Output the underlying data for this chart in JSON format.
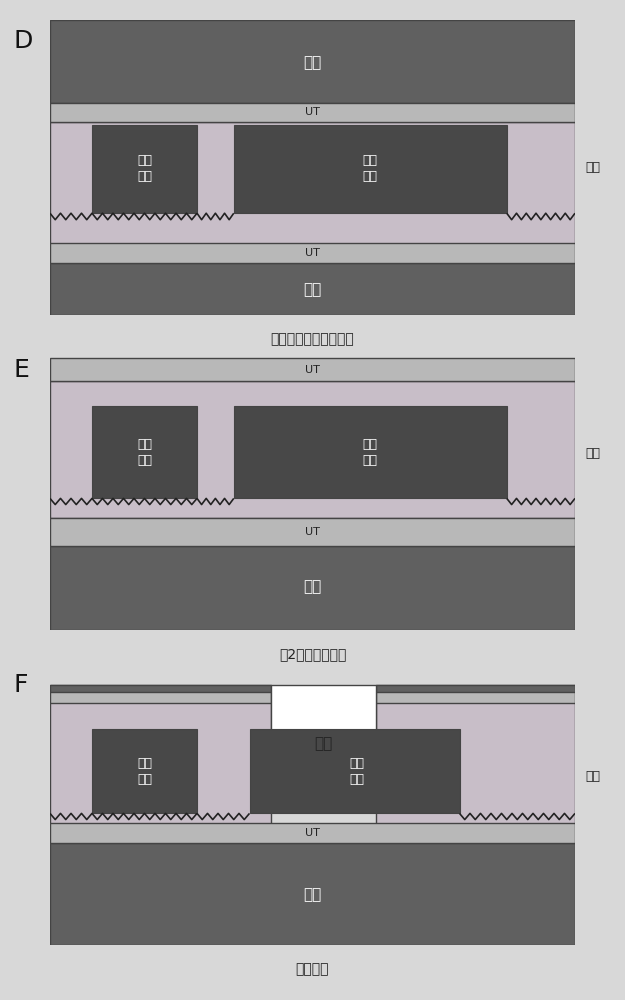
{
  "bg_color": "#d8d8d8",
  "carrier_color": "#606060",
  "ut_layer_color": "#b8b8b8",
  "ut_thin_color": "#c0bcc0",
  "resin_color": "#c8bec8",
  "circuit_color": "#484848",
  "white_color": "#ffffff",
  "border_color": "#444444",
  "text_color_white": "#ffffff",
  "text_color_dark": "#222222",
  "panel_label_color": "#111111",
  "panels": [
    "D",
    "E",
    "F"
  ],
  "captions": [
    "树脂及附载体铜箔积层",
    "第2层载体箔去除",
    "激光打孔"
  ],
  "label_resin": "树脂",
  "label_UT": "UT",
  "label_carrier": "载体",
  "label_circuit_1": "电路\n镀敷",
  "label_circuit_2": "电路\n镀敷",
  "label_laser": "激光"
}
